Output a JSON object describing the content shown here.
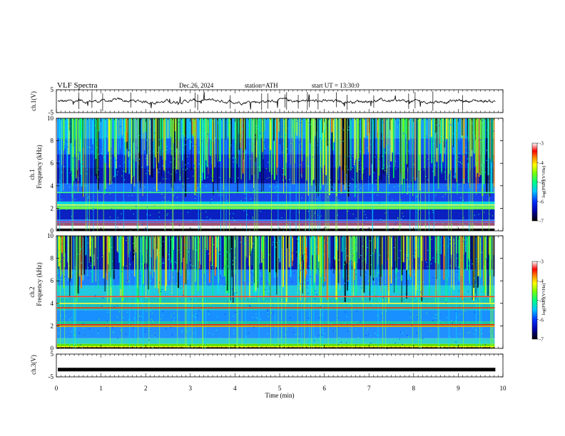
{
  "header": {
    "title": "VLF  Spectra",
    "date": "Dec.26, 2024",
    "station": "station=ATH",
    "start": "start  UT  =   13:30:0"
  },
  "chart_data": [
    {
      "type": "line",
      "panel": "ch1-waveform",
      "ylabel": "ch.1(V)",
      "ylim": [
        -5,
        5
      ],
      "yticks": [
        {
          "v": 5,
          "label": "5"
        },
        {
          "v": -5,
          "label": "-5"
        }
      ],
      "description_values": "noisy waveform around 0 V, amplitude about ±1 V, with occasional spikes"
    },
    {
      "type": "heatmap",
      "panel": "ch1-spectrogram",
      "ylabel": "ch.1\nFrequency  (kHz)",
      "ylabel_top": "ch.1",
      "ylabel_bottom": "Frequency  (kHz)",
      "ylim": [
        0,
        10
      ],
      "yticks": [
        {
          "v": 0,
          "label": "0"
        },
        {
          "v": 2,
          "label": "2"
        },
        {
          "v": 4,
          "label": "4"
        },
        {
          "v": 6,
          "label": "6"
        },
        {
          "v": 8,
          "label": "8"
        },
        {
          "v": 10,
          "label": "10"
        }
      ],
      "colorbar": {
        "label": "log(PSD)(V²/Hz)",
        "range": [
          -7,
          -3
        ],
        "ticks": [
          {
            "v": -3,
            "label": "-3"
          },
          {
            "v": -4,
            "label": "-4"
          },
          {
            "v": -5,
            "label": "-5"
          },
          {
            "v": -6,
            "label": "-6"
          },
          {
            "v": -7,
            "label": "-7"
          }
        ]
      }
    },
    {
      "type": "heatmap",
      "panel": "ch2-spectrogram",
      "ylabel_top": "ch.2",
      "ylabel_bottom": "Frequency  (kHz)",
      "ylim": [
        0,
        10
      ],
      "yticks": [
        {
          "v": 0,
          "label": "0"
        },
        {
          "v": 2,
          "label": "2"
        },
        {
          "v": 4,
          "label": "4"
        },
        {
          "v": 6,
          "label": "6"
        },
        {
          "v": 8,
          "label": "8"
        },
        {
          "v": 10,
          "label": "10"
        }
      ],
      "colorbar": {
        "label": "log(PSD)(V²/Hz)",
        "range": [
          -7,
          -3
        ],
        "ticks": [
          {
            "v": -3,
            "label": "-3"
          },
          {
            "v": -4,
            "label": "-4"
          },
          {
            "v": -5,
            "label": "-5"
          },
          {
            "v": -6,
            "label": "-6"
          },
          {
            "v": -7,
            "label": "-7"
          }
        ]
      }
    },
    {
      "type": "line",
      "panel": "ch3-waveform",
      "ylabel": "ch.3(V)",
      "ylim": [
        -5,
        5
      ],
      "yticks": [
        {
          "v": 5,
          "label": "5"
        },
        {
          "v": -5,
          "label": "-5"
        }
      ],
      "level": -1.8
    }
  ],
  "xaxis": {
    "label": "Time  (min)",
    "xlim": [
      0,
      10
    ],
    "data_end": 9.83,
    "ticks": [
      {
        "v": 0,
        "label": "0"
      },
      {
        "v": 1,
        "label": "1"
      },
      {
        "v": 2,
        "label": "2"
      },
      {
        "v": 3,
        "label": "3"
      },
      {
        "v": 4,
        "label": "4"
      },
      {
        "v": 5,
        "label": "5"
      },
      {
        "v": 6,
        "label": "6"
      },
      {
        "v": 7,
        "label": "7"
      },
      {
        "v": 8,
        "label": "8"
      },
      {
        "v": 9,
        "label": "9"
      },
      {
        "v": 10,
        "label": "10"
      }
    ]
  }
}
